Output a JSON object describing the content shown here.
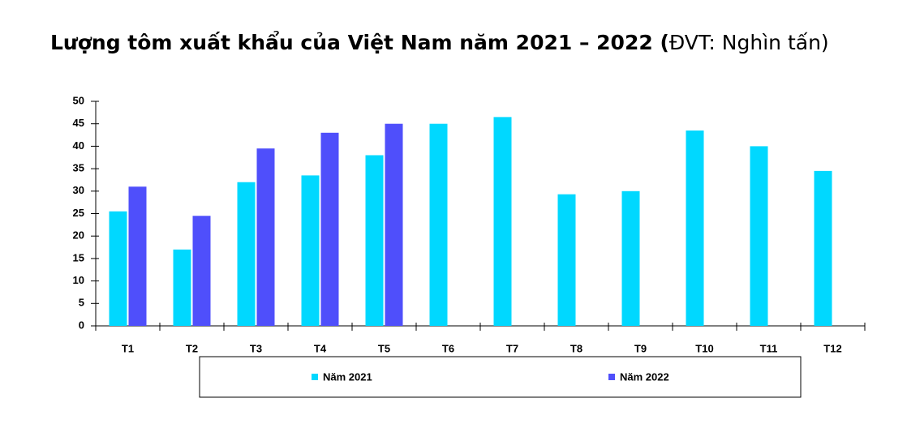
{
  "chart_data": {
    "type": "bar",
    "title": "Lượng tôm xuất khẩu của Việt Nam năm 2021 – 2022 (",
    "title_note": "ĐVT: Nghìn tấn)",
    "categories": [
      "T1",
      "T2",
      "T3",
      "T4",
      "T5",
      "T6",
      "T7",
      "T8",
      "T9",
      "T10",
      "T11",
      "T12"
    ],
    "series": [
      {
        "name": "Năm 2021",
        "color": "#00d8ff",
        "values": [
          25.5,
          17,
          32,
          33.5,
          38,
          45,
          46.5,
          29.3,
          30,
          43.5,
          40,
          34.5
        ]
      },
      {
        "name": "Năm 2022",
        "color": "#4f4ffb",
        "values": [
          31,
          24.5,
          39.5,
          43,
          45,
          null,
          null,
          null,
          null,
          null,
          null,
          null
        ]
      }
    ],
    "ylim": [
      0,
      50
    ],
    "yticks": [
      0,
      5,
      10,
      15,
      20,
      25,
      30,
      35,
      40,
      45,
      50
    ],
    "grid": false
  }
}
